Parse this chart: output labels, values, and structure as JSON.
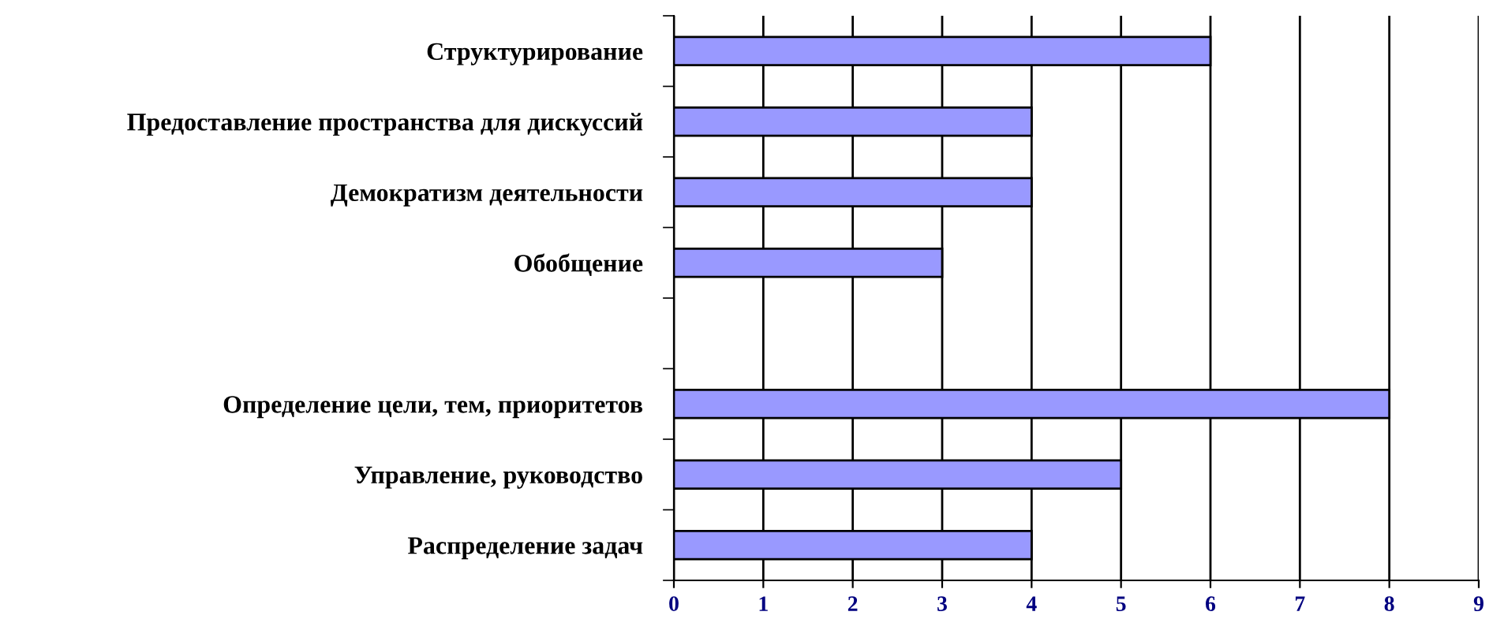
{
  "chart_data": {
    "type": "bar",
    "orientation": "horizontal",
    "categories": [
      "Структурирование",
      "Предоставление пространства для дискуссий",
      "Демократизм деятельности",
      "Обобщение",
      null,
      "Определение цели, тем, приоритетов",
      "Управление, руководство",
      "Распределение задач"
    ],
    "values": [
      6,
      4,
      4,
      3,
      null,
      8,
      5,
      4
    ],
    "color": "#9999ff",
    "xlim": [
      0,
      9
    ],
    "xticks": [
      0,
      1,
      2,
      3,
      4,
      5,
      6,
      7,
      8,
      9
    ],
    "grid": "x"
  }
}
